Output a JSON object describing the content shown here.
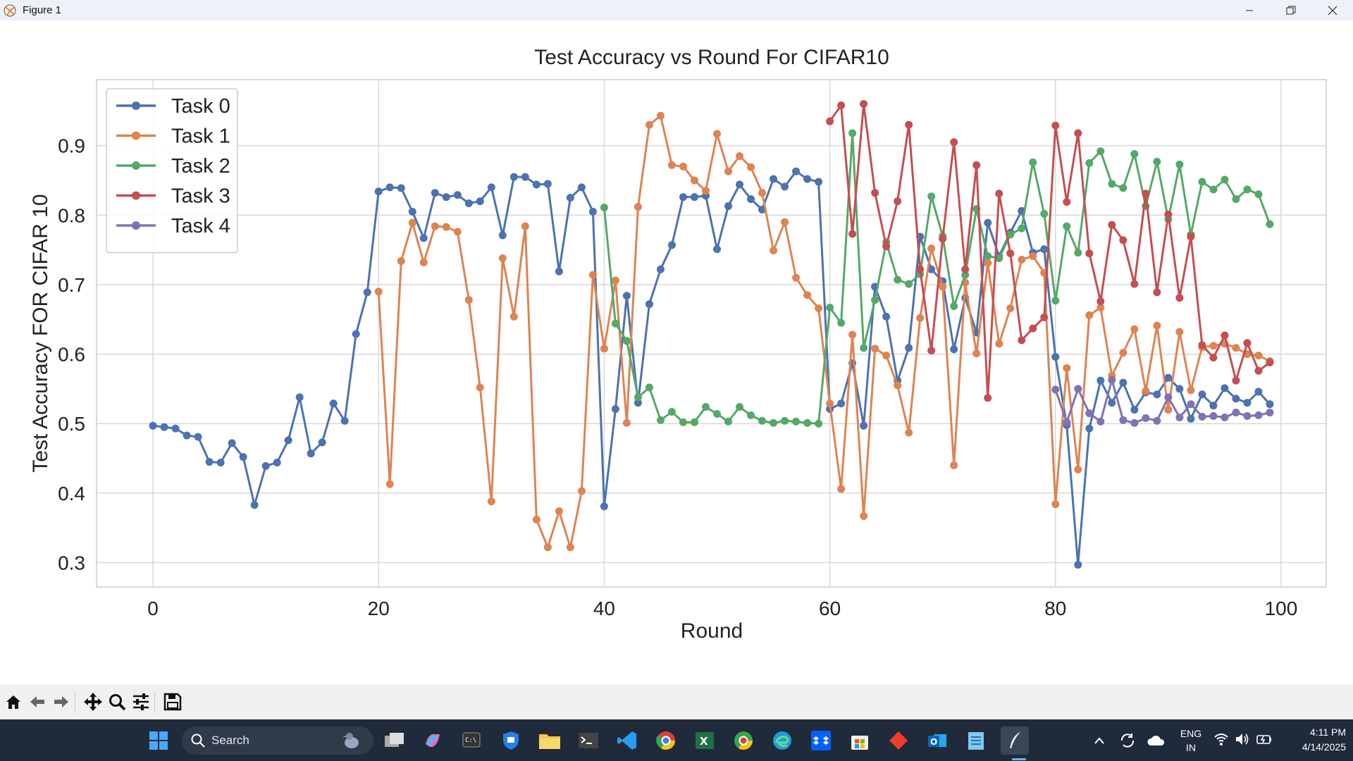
{
  "window": {
    "title": "Figure 1"
  },
  "colors": {
    "task0": "#4c72b0",
    "task1": "#dd8452",
    "task2": "#55a868",
    "task3": "#c44e52",
    "task4": "#8172b3"
  },
  "chart_data": {
    "type": "line",
    "title": "Test Accuracy vs Round For CIFAR10",
    "xlabel": "Round",
    "ylabel": "Test Accuracy FOR CIFAR 10",
    "xlim": [
      -5,
      104
    ],
    "ylim": [
      0.265,
      0.995
    ],
    "xticks": [
      0,
      20,
      40,
      60,
      80,
      100
    ],
    "xtick_labels": [
      "0",
      "20",
      "40",
      "60",
      "80",
      "100"
    ],
    "yticks": [
      0.3,
      0.4,
      0.5,
      0.6,
      0.7,
      0.8,
      0.9
    ],
    "ytick_labels": [
      "0.3",
      "0.4",
      "0.5",
      "0.6",
      "0.7",
      "0.8",
      "0.9"
    ],
    "grid": true,
    "legend_position": "top-left",
    "series": [
      {
        "name": "Task 0",
        "color": "#4c72b0",
        "x_start": 0,
        "values": [
          0.497,
          0.495,
          0.493,
          0.483,
          0.481,
          0.445,
          0.444,
          0.472,
          0.452,
          0.383,
          0.439,
          0.444,
          0.476,
          0.538,
          0.457,
          0.473,
          0.529,
          0.504,
          0.629,
          0.689,
          0.834,
          0.84,
          0.839,
          0.805,
          0.767,
          0.832,
          0.826,
          0.829,
          0.817,
          0.82,
          0.84,
          0.771,
          0.855,
          0.855,
          0.844,
          0.845,
          0.719,
          0.825,
          0.84,
          0.805,
          0.381,
          0.521,
          0.684,
          0.53,
          0.672,
          0.722,
          0.757,
          0.826,
          0.826,
          0.828,
          0.751,
          0.813,
          0.844,
          0.823,
          0.808,
          0.852,
          0.841,
          0.863,
          0.852,
          0.848,
          0.521,
          0.529,
          0.587,
          0.497,
          0.697,
          0.654,
          0.562,
          0.609,
          0.769,
          0.722,
          0.705,
          0.607,
          0.681,
          0.631,
          0.789,
          0.741,
          0.775,
          0.806,
          0.746,
          0.751,
          0.596,
          0.498,
          0.297,
          0.493,
          0.562,
          0.53,
          0.559,
          0.52,
          0.545,
          0.542,
          0.566,
          0.55,
          0.507,
          0.542,
          0.526,
          0.551,
          0.536,
          0.53,
          0.546,
          0.528
        ]
      },
      {
        "name": "Task 1",
        "color": "#dd8452",
        "x_start": 20,
        "values": [
          0.69,
          0.413,
          0.734,
          0.789,
          0.732,
          0.784,
          0.783,
          0.776,
          0.678,
          0.552,
          0.388,
          0.738,
          0.654,
          0.784,
          0.362,
          0.322,
          0.374,
          0.322,
          0.403,
          0.714,
          0.608,
          0.706,
          0.501,
          0.812,
          0.93,
          0.943,
          0.872,
          0.87,
          0.85,
          0.835,
          0.917,
          0.863,
          0.885,
          0.869,
          0.832,
          0.749,
          0.79,
          0.71,
          0.685,
          0.666,
          0.529,
          0.406,
          0.628,
          0.367,
          0.608,
          0.598,
          0.555,
          0.487,
          0.652,
          0.752,
          0.697,
          0.44,
          0.703,
          0.601,
          0.731,
          0.615,
          0.666,
          0.736,
          0.741,
          0.717,
          0.384,
          0.58,
          0.434,
          0.656,
          0.667,
          0.569,
          0.602,
          0.636,
          0.547,
          0.641,
          0.52,
          0.632,
          0.548,
          0.61,
          0.612,
          0.615,
          0.609,
          0.6,
          0.598,
          0.59
        ]
      },
      {
        "name": "Task 2",
        "color": "#55a868",
        "x_start": 40,
        "values": [
          0.811,
          0.644,
          0.619,
          0.538,
          0.552,
          0.505,
          0.517,
          0.502,
          0.502,
          0.524,
          0.514,
          0.503,
          0.524,
          0.512,
          0.504,
          0.501,
          0.504,
          0.503,
          0.501,
          0.5,
          0.667,
          0.645,
          0.918,
          0.609,
          0.678,
          0.761,
          0.707,
          0.701,
          0.715,
          0.827,
          0.77,
          0.669,
          0.714,
          0.809,
          0.741,
          0.738,
          0.772,
          0.781,
          0.876,
          0.802,
          0.677,
          0.784,
          0.746,
          0.875,
          0.892,
          0.845,
          0.839,
          0.888,
          0.813,
          0.877,
          0.794,
          0.873,
          0.772,
          0.848,
          0.837,
          0.851,
          0.823,
          0.837,
          0.83,
          0.787
        ]
      },
      {
        "name": "Task 3",
        "color": "#c44e52",
        "x_start": 60,
        "values": [
          0.935,
          0.958,
          0.773,
          0.96,
          0.832,
          0.755,
          0.82,
          0.93,
          0.722,
          0.605,
          0.766,
          0.905,
          0.722,
          0.872,
          0.537,
          0.831,
          0.745,
          0.62,
          0.637,
          0.653,
          0.929,
          0.819,
          0.918,
          0.745,
          0.676,
          0.786,
          0.764,
          0.701,
          0.831,
          0.689,
          0.801,
          0.681,
          0.769,
          0.613,
          0.595,
          0.627,
          0.562,
          0.616,
          0.576,
          0.588
        ]
      },
      {
        "name": "Task 4",
        "color": "#8172b3",
        "x_start": 80,
        "values": [
          0.549,
          0.502,
          0.55,
          0.515,
          0.503,
          0.563,
          0.505,
          0.501,
          0.508,
          0.504,
          0.538,
          0.509,
          0.528,
          0.51,
          0.511,
          0.509,
          0.516,
          0.511,
          0.512,
          0.516
        ]
      }
    ]
  },
  "toolbar": {
    "buttons": [
      "home-icon",
      "back-icon",
      "forward-icon",
      "pan-icon",
      "zoom-icon",
      "configure-icon",
      "save-icon"
    ]
  },
  "taskbar": {
    "search_placeholder": "Search",
    "lang_line1": "ENG",
    "lang_line2": "IN",
    "time": "4:11 PM",
    "date": "4/14/2025"
  }
}
